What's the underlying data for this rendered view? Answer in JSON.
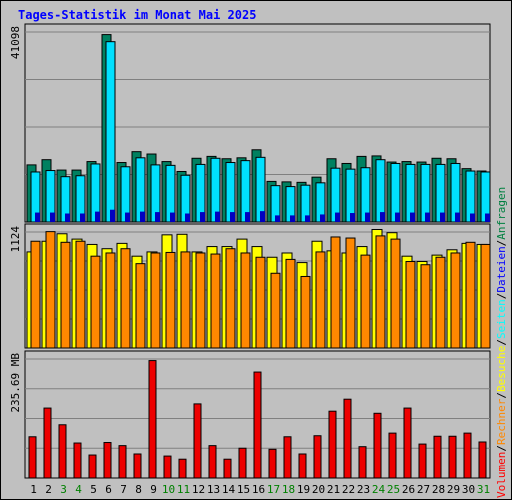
{
  "title": "Tages-Statistik im Monat Mai 2025",
  "legend": [
    {
      "label": "Volumen",
      "color": "#ff0000"
    },
    {
      "label": "Rechner",
      "color": "#ff8800"
    },
    {
      "label": "Besuche",
      "color": "#ffff00"
    },
    {
      "label": "Seiten",
      "color": "#00ffff"
    },
    {
      "label": "Dateien",
      "color": "#0000ff"
    },
    {
      "label": "Anfragen",
      "color": "#008040"
    }
  ],
  "separator": "/",
  "colors": {
    "panel_bg": "#c0c0c0",
    "grid": "#808080",
    "anfragen": "#008060",
    "seiten": "#00e0ff",
    "dateien": "#0000c0",
    "besuche": "#ffff00",
    "rechner": "#ff8800",
    "volumen": "#ee0000",
    "weekend_label": "#008000"
  },
  "chart_data": {
    "type": "bar",
    "categories": [
      "1",
      "2",
      "3",
      "4",
      "5",
      "6",
      "7",
      "8",
      "9",
      "10",
      "11",
      "12",
      "13",
      "14",
      "15",
      "16",
      "17",
      "18",
      "19",
      "20",
      "21",
      "22",
      "23",
      "24",
      "25",
      "26",
      "27",
      "28",
      "29",
      "30",
      "31"
    ],
    "weekend_days": [
      "3",
      "4",
      "10",
      "11",
      "17",
      "18",
      "24",
      "25",
      "31"
    ],
    "panels": [
      {
        "ylabel": "41098",
        "ymax": 41098,
        "series": [
          {
            "name": "Anfragen",
            "values": [
              12100,
              13200,
              11000,
              11000,
              12800,
              39700,
              12600,
              14900,
              14400,
              12800,
              10700,
              13500,
              13900,
              13400,
              13600,
              15300,
              8600,
              8500,
              8400,
              9500,
              13400,
              12400,
              13900,
              14000,
              12700,
              12800,
              12700,
              13500,
              13400,
              11300,
              10800
            ]
          },
          {
            "name": "Seiten",
            "values": [
              10600,
              10900,
              9600,
              9800,
              12300,
              38200,
              11700,
              13600,
              12100,
              12000,
              9900,
              12200,
              13500,
              12600,
              13000,
              13700,
              7700,
              7500,
              7800,
              8300,
              11400,
              11200,
              11500,
              13200,
              12400,
              12200,
              12200,
              12200,
              12400,
              10800,
              10600
            ]
          },
          {
            "name": "Dateien",
            "values": [
              2000,
              2000,
              1800,
              1800,
              2200,
              2600,
              2000,
              2200,
              2100,
              2000,
              1800,
              2100,
              2200,
              2100,
              2100,
              2300,
              1400,
              1400,
              1400,
              1600,
              2000,
              1900,
              2000,
              2100,
              2000,
              2000,
              2000,
              2000,
              2000,
              1800,
              1800
            ]
          }
        ]
      },
      {
        "ylabel": "1124",
        "ymax": 1124,
        "series": [
          {
            "name": "Besuche",
            "values": [
              900,
              1000,
              1070,
              1020,
              970,
              930,
              980,
              860,
              900,
              1060,
              1065,
              900,
              950,
              950,
              1020,
              950,
              850,
              890,
              800,
              1000,
              910,
              890,
              950,
              1110,
              1080,
              860,
              810,
              870,
              920,
              980,
              970
            ]
          },
          {
            "name": "Rechner",
            "values": [
              1000,
              1090,
              990,
              1000,
              860,
              890,
              930,
              790,
              890,
              895,
              900,
              890,
              880,
              930,
              890,
              850,
              700,
              830,
              670,
              900,
              1040,
              1030,
              870,
              1050,
              1020,
              810,
              780,
              850,
              890,
              990,
              970
            ]
          }
        ]
      },
      {
        "ylabel": "235.69 MB",
        "ymax": 235.69,
        "series": [
          {
            "name": "Volumen",
            "values": [
              79,
              134,
              102,
              67,
              44,
              68,
              62,
              46,
              225,
              42,
              36,
              142,
              62,
              36,
              57,
              203,
              55,
              79,
              46,
              81,
              128,
              151,
              60,
              124,
              86,
              134,
              65,
              80,
              80,
              86,
              69
            ]
          }
        ]
      }
    ]
  }
}
